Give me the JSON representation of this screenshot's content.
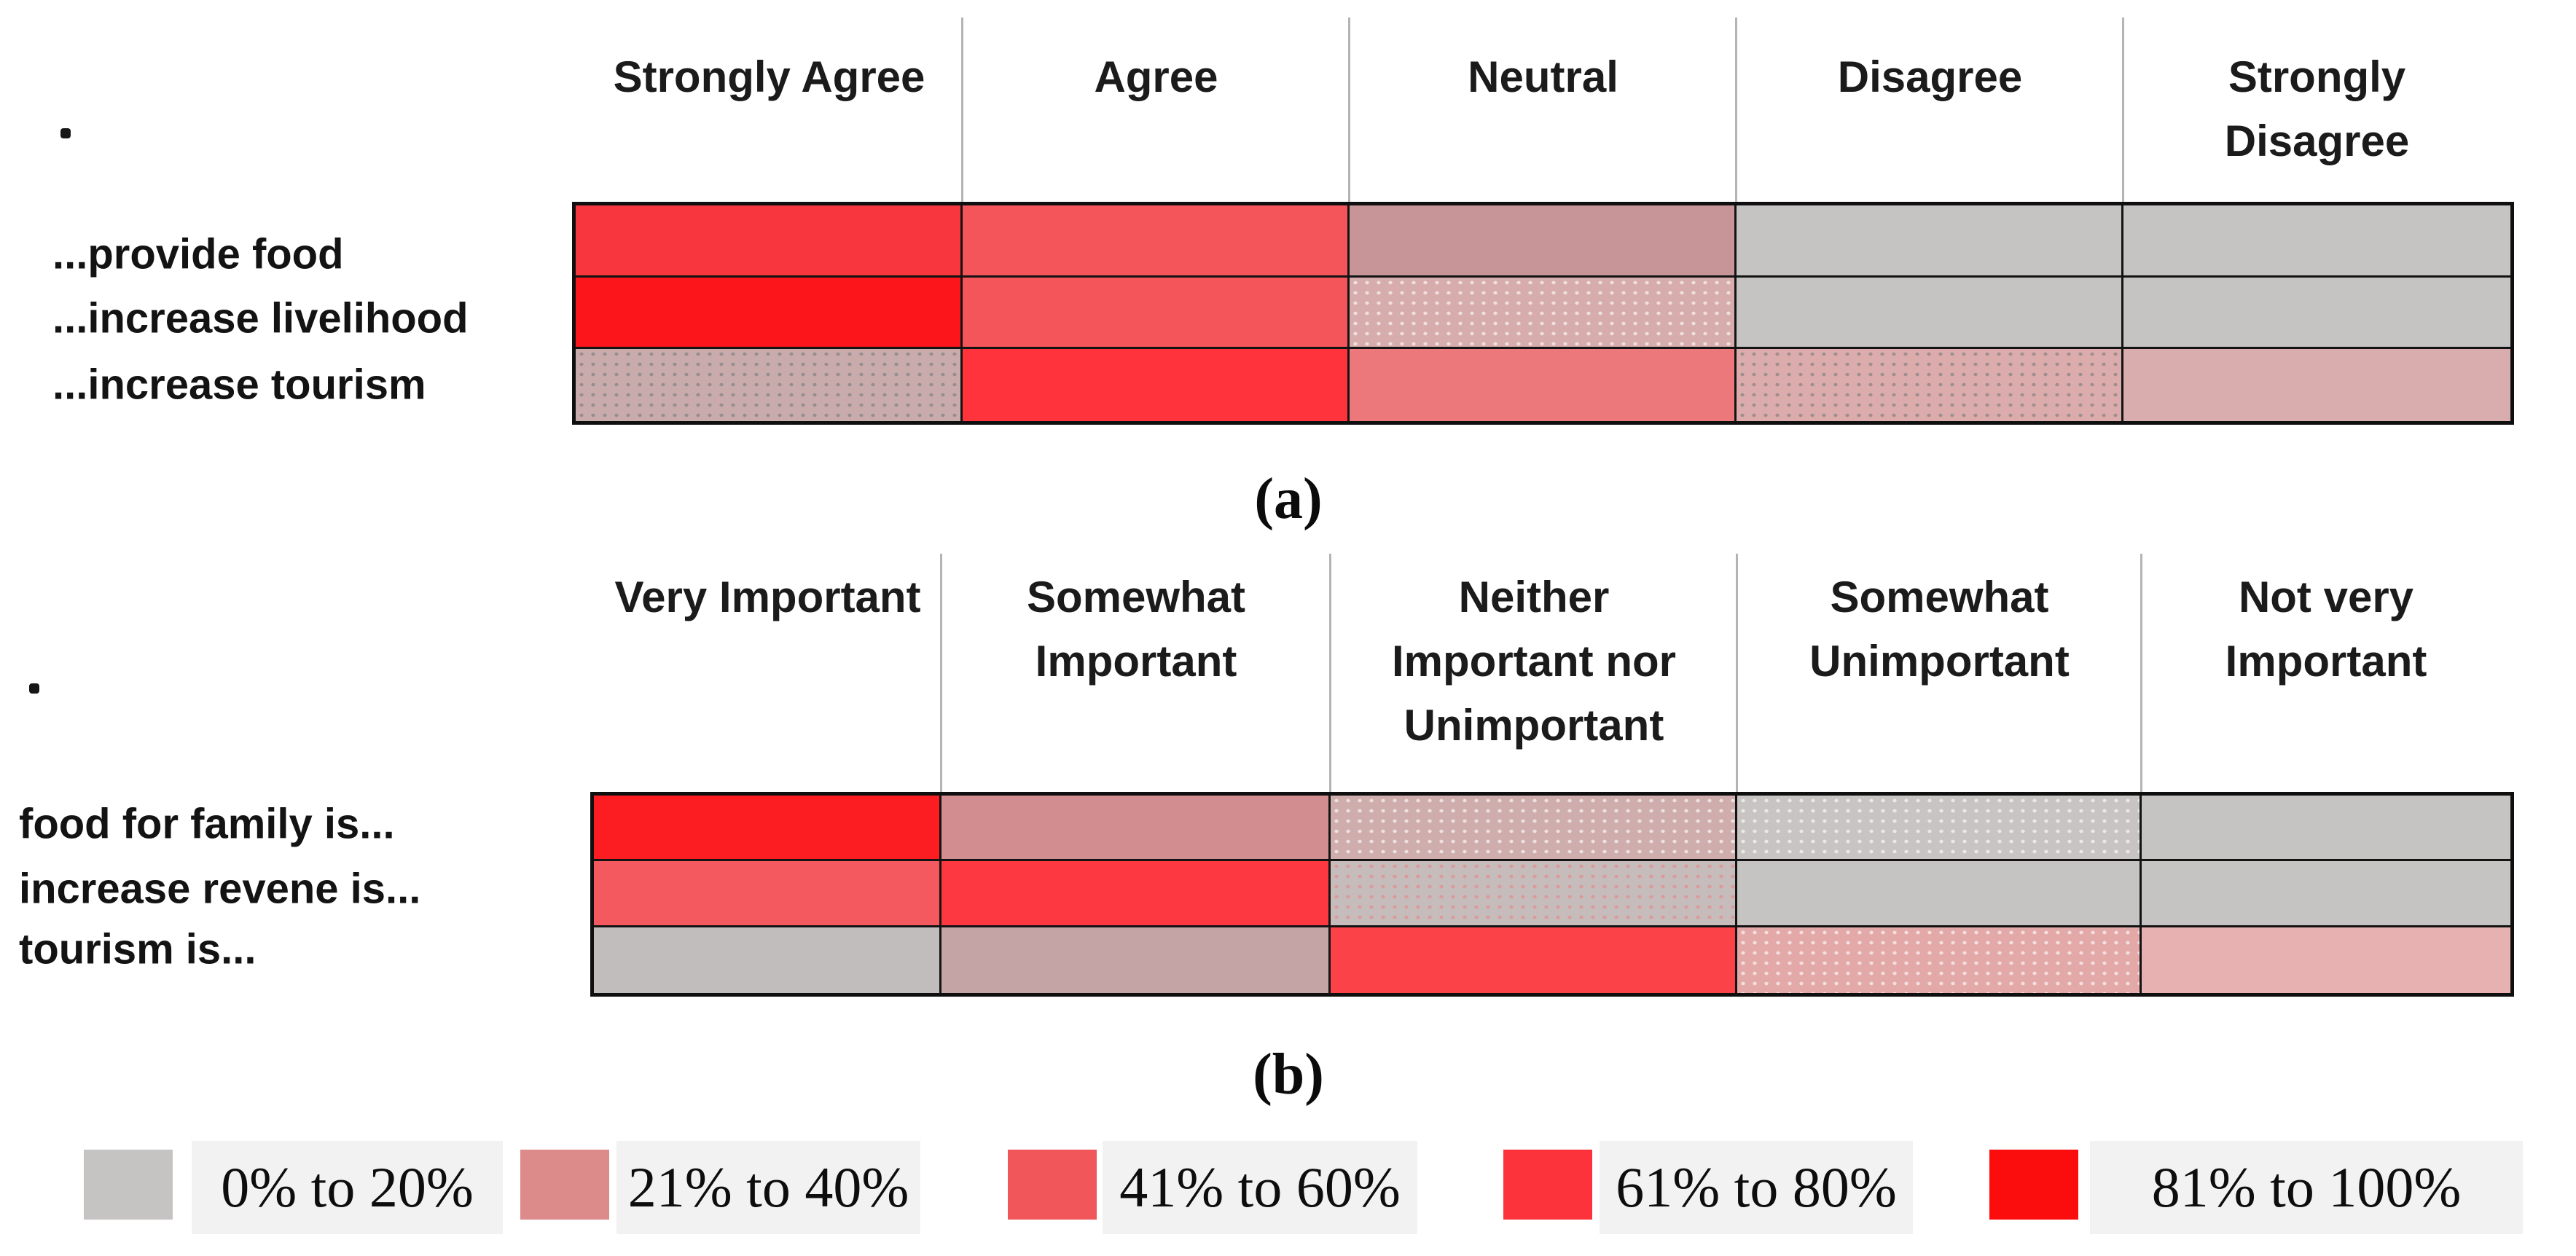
{
  "captions": {
    "a": "(a)",
    "b": "(b)"
  },
  "axis_marker": ".",
  "palette": {
    "0% to 20%": "#c6c3c3",
    "21% to 40%": "#dd8a8b",
    "41% to 60%": "#f0565a",
    "61% to 80%": "#fc333a",
    "81% to 100%": "#fb0d0d"
  },
  "legend": {
    "items": [
      {
        "label": "0% to 20%",
        "color": "#c6c3c3"
      },
      {
        "label": "21% to 40%",
        "color": "#dd8a8b"
      },
      {
        "label": "41% to 60%",
        "color": "#f0565a"
      },
      {
        "label": "61% to 80%",
        "color": "#fc333a"
      },
      {
        "label": "81% to 100%",
        "color": "#fb0d0d"
      }
    ]
  },
  "panels": [
    {
      "id": "a",
      "caption": "(a)",
      "columns": [
        "Strongly Agree",
        "Agree",
        "Neutral",
        "Disagree",
        "Strongly Disagree"
      ],
      "columns_display": [
        "Strongly Agree",
        "Agree",
        "Neutral",
        "Disagree",
        "Strongly\nDisagree"
      ],
      "rows": [
        "...provide food",
        "...increase livelihood",
        "...increase tourism"
      ],
      "cells": [
        [
          {
            "bin": "61% to 80%",
            "fill": "#f8363e",
            "dots": null
          },
          {
            "bin": "41% to 60%",
            "fill": "#f4555b",
            "dots": null
          },
          {
            "bin": "21% to 40%",
            "fill": "#c79598",
            "dots": null
          },
          {
            "bin": "0% to 20%",
            "fill": "#c6c3c3",
            "dots": null
          },
          {
            "bin": "0% to 20%",
            "fill": "#c6c3c3",
            "dots": null
          }
        ],
        [
          {
            "bin": "81% to 100%",
            "fill": "#fc161c",
            "dots": null
          },
          {
            "bin": "41% to 60%",
            "fill": "#f4555b",
            "dots": null
          },
          {
            "bin": "21% to 40%",
            "fill": "#d7acac",
            "dots": "light"
          },
          {
            "bin": "0% to 20%",
            "fill": "#c6c3c3",
            "dots": null
          },
          {
            "bin": "0% to 20%",
            "fill": "#c6c3c3",
            "dots": null
          }
        ],
        [
          {
            "bin": "0% to 20%",
            "fill": "#c8abaa",
            "dots": "dark"
          },
          {
            "bin": "61% to 80%",
            "fill": "#fe333b",
            "dots": null
          },
          {
            "bin": "41% to 60%",
            "fill": "#ec787c",
            "dots": null
          },
          {
            "bin": "21% to 40%",
            "fill": "#dcabab",
            "dots": "dark"
          },
          {
            "bin": "21% to 40%",
            "fill": "#d9adad",
            "dots": null
          }
        ]
      ]
    },
    {
      "id": "b",
      "caption": "(b)",
      "columns": [
        "Very Important",
        "Somewhat Important",
        "Neither Important nor Unimportant",
        "Somewhat Unimportant",
        "Not very Important"
      ],
      "columns_display": [
        "Very Important",
        "Somewhat\nImportant",
        "Neither\nImportant nor\nUnimportant",
        "Somewhat\nUnimportant",
        "Not very\nImportant"
      ],
      "rows": [
        "food for family is...",
        "increase revene is...",
        "tourism is..."
      ],
      "cells": [
        [
          {
            "bin": "81% to 100%",
            "fill": "#fc1d23",
            "dots": null
          },
          {
            "bin": "21% to 40%",
            "fill": "#d28d90",
            "dots": null
          },
          {
            "bin": "21% to 40%",
            "fill": "#cfadad",
            "dots": "light"
          },
          {
            "bin": "0% to 20%",
            "fill": "#c9c4c4",
            "dots": "light"
          },
          {
            "bin": "0% to 20%",
            "fill": "#c6c3c3",
            "dots": null
          }
        ],
        [
          {
            "bin": "41% to 60%",
            "fill": "#f4595f",
            "dots": null
          },
          {
            "bin": "61% to 80%",
            "fill": "#fe3840",
            "dots": null
          },
          {
            "bin": "0% to 20%",
            "fill": "#c6bcbc",
            "dots": "pink"
          },
          {
            "bin": "0% to 20%",
            "fill": "#c6c3c3",
            "dots": null
          },
          {
            "bin": "0% to 20%",
            "fill": "#c6c3c3",
            "dots": null
          }
        ],
        [
          {
            "bin": "0% to 20%",
            "fill": "#c1bdbd",
            "dots": null
          },
          {
            "bin": "21% to 40%",
            "fill": "#c5a4a5",
            "dots": null
          },
          {
            "bin": "61% to 80%",
            "fill": "#fb4248",
            "dots": null
          },
          {
            "bin": "21% to 40%",
            "fill": "#e3a9a9",
            "dots": "light"
          },
          {
            "bin": "21% to 40%",
            "fill": "#e7b1b1",
            "dots": null
          }
        ]
      ]
    }
  ],
  "chart_data": [
    {
      "type": "heatmap",
      "panel": "a",
      "title": "(a)",
      "columns": [
        "Strongly Agree",
        "Agree",
        "Neutral",
        "Disagree",
        "Strongly Disagree"
      ],
      "rows": [
        "...provide food",
        "...increase livelihood",
        "...increase tourism"
      ],
      "values": [
        [
          "61% to 80%",
          "41% to 60%",
          "21% to 40%",
          "0% to 20%",
          "0% to 20%"
        ],
        [
          "81% to 100%",
          "41% to 60%",
          "21% to 40%",
          "0% to 20%",
          "0% to 20%"
        ],
        [
          "0% to 20%",
          "61% to 80%",
          "41% to 60%",
          "21% to 40%",
          "21% to 40%"
        ]
      ],
      "legend_bins": [
        "0% to 20%",
        "21% to 40%",
        "41% to 60%",
        "61% to 80%",
        "81% to 100%"
      ],
      "legend_position": "bottom",
      "grid": true
    },
    {
      "type": "heatmap",
      "panel": "b",
      "title": "(b)",
      "columns": [
        "Very Important",
        "Somewhat Important",
        "Neither Important nor Unimportant",
        "Somewhat Unimportant",
        "Not very Important"
      ],
      "rows": [
        "food for family is...",
        "increase revene is...",
        "tourism is..."
      ],
      "values": [
        [
          "81% to 100%",
          "21% to 40%",
          "21% to 40%",
          "0% to 20%",
          "0% to 20%"
        ],
        [
          "41% to 60%",
          "61% to 80%",
          "0% to 20%",
          "0% to 20%",
          "0% to 20%"
        ],
        [
          "0% to 20%",
          "21% to 40%",
          "61% to 80%",
          "21% to 40%",
          "21% to 40%"
        ]
      ],
      "legend_bins": [
        "0% to 20%",
        "21% to 40%",
        "41% to 60%",
        "61% to 80%",
        "81% to 100%"
      ],
      "legend_position": "bottom",
      "grid": true
    }
  ]
}
